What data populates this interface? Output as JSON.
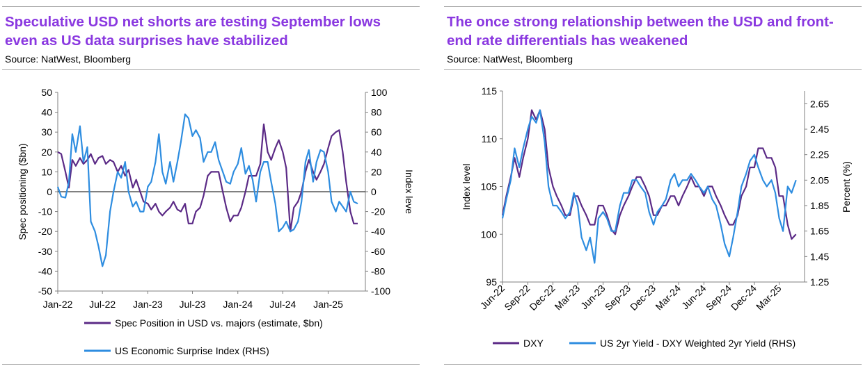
{
  "panels": [
    {
      "title": "Speculative USD net shorts are testing September lows even as US data surprises have stabilized",
      "source": "Source: NatWest, Bloomberg"
    },
    {
      "title": "The once strong relationship between the USD and front-end rate differentials has weakened",
      "source": "Source: NatWest, Bloomberg"
    }
  ],
  "colors": {
    "title": "#8a38e0",
    "purple_series": "#5b2a86",
    "blue_series": "#2e8de0",
    "rule": "#a6a6a6"
  },
  "chart_data": [
    {
      "type": "line",
      "title": "",
      "ylabel": "Spec positioning ($bn)",
      "y2label": "Index leve",
      "ylim": [
        -50,
        50
      ],
      "y2lim": [
        -100,
        100
      ],
      "yticks": [
        "50",
        "40",
        "30",
        "20",
        "10",
        "0",
        "-10",
        "-20",
        "-30",
        "-40",
        "-50"
      ],
      "y2ticks": [
        "100",
        "80",
        "60",
        "40",
        "20",
        "0",
        "-20",
        "-40",
        "-60",
        "-80",
        "-100"
      ],
      "xticks": [
        "Jan-22",
        "Jul-22",
        "Jan-23",
        "Jul-23",
        "Jan-24",
        "Jul-24",
        "Jan-25"
      ],
      "xtick_dates": [
        "2022-01-01",
        "2022-07-01",
        "2023-01-01",
        "2023-07-01",
        "2024-01-01",
        "2024-07-01",
        "2025-01-01"
      ],
      "xlim": [
        "2022-01-01",
        "2025-06-01"
      ],
      "grid": false,
      "legend_position": "bottom",
      "series": [
        {
          "name": "Spec Position in USD vs. majors (estimate, $bn)",
          "axis": "left",
          "color": "#5b2a86",
          "x": [
            "2022-01-01",
            "2022-01-15",
            "2022-02-01",
            "2022-02-15",
            "2022-03-01",
            "2022-03-15",
            "2022-04-01",
            "2022-04-15",
            "2022-05-01",
            "2022-05-15",
            "2022-06-01",
            "2022-06-15",
            "2022-07-01",
            "2022-07-15",
            "2022-08-01",
            "2022-08-15",
            "2022-09-01",
            "2022-09-15",
            "2022-10-01",
            "2022-10-15",
            "2022-11-01",
            "2022-11-15",
            "2022-12-01",
            "2022-12-15",
            "2023-01-01",
            "2023-01-15",
            "2023-02-01",
            "2023-02-15",
            "2023-03-01",
            "2023-03-15",
            "2023-04-01",
            "2023-04-15",
            "2023-05-01",
            "2023-05-15",
            "2023-06-01",
            "2023-06-15",
            "2023-07-01",
            "2023-07-15",
            "2023-08-01",
            "2023-08-15",
            "2023-09-01",
            "2023-09-15",
            "2023-10-01",
            "2023-10-15",
            "2023-11-01",
            "2023-11-15",
            "2023-12-01",
            "2023-12-15",
            "2024-01-01",
            "2024-01-15",
            "2024-02-01",
            "2024-02-15",
            "2024-03-01",
            "2024-03-15",
            "2024-04-01",
            "2024-04-15",
            "2024-05-01",
            "2024-05-15",
            "2024-06-01",
            "2024-06-15",
            "2024-07-01",
            "2024-07-15",
            "2024-08-01",
            "2024-08-15",
            "2024-09-01",
            "2024-09-15",
            "2024-10-01",
            "2024-10-15",
            "2024-11-01",
            "2024-11-15",
            "2024-12-01",
            "2024-12-15",
            "2025-01-01",
            "2025-01-15",
            "2025-02-01",
            "2025-02-15",
            "2025-03-01",
            "2025-03-15",
            "2025-04-01",
            "2025-04-15",
            "2025-05-01"
          ],
          "y": [
            20,
            19,
            10,
            2,
            16,
            13,
            17,
            14,
            16,
            19,
            14,
            17,
            18,
            14,
            16,
            15,
            10,
            13,
            8,
            11,
            2,
            6,
            0,
            -5,
            -6,
            -9,
            -6,
            -10,
            -12,
            -10,
            -8,
            -5,
            -9,
            -10,
            -6,
            -16,
            -16,
            -10,
            -8,
            -2,
            8,
            10,
            10,
            10,
            0,
            -8,
            -15,
            -12,
            -12,
            -8,
            0,
            8,
            8,
            8,
            14,
            34,
            20,
            16,
            22,
            26,
            20,
            12,
            -20,
            -8,
            -5,
            0,
            10,
            16,
            10,
            6,
            10,
            14,
            22,
            28,
            30,
            31,
            20,
            5,
            -10,
            -16,
            -16
          ]
        },
        {
          "name": "US Economic Surprise Index (RHS)",
          "axis": "right",
          "color": "#2e8de0",
          "x": [
            "2022-01-01",
            "2022-01-15",
            "2022-02-01",
            "2022-02-15",
            "2022-03-01",
            "2022-03-15",
            "2022-04-01",
            "2022-04-15",
            "2022-05-01",
            "2022-05-15",
            "2022-06-01",
            "2022-06-15",
            "2022-07-01",
            "2022-07-15",
            "2022-08-01",
            "2022-08-15",
            "2022-09-01",
            "2022-09-15",
            "2022-10-01",
            "2022-10-15",
            "2022-11-01",
            "2022-11-15",
            "2022-12-01",
            "2022-12-15",
            "2023-01-01",
            "2023-01-15",
            "2023-02-01",
            "2023-02-15",
            "2023-03-01",
            "2023-03-15",
            "2023-04-01",
            "2023-04-15",
            "2023-05-01",
            "2023-05-15",
            "2023-06-01",
            "2023-06-15",
            "2023-07-01",
            "2023-07-15",
            "2023-08-01",
            "2023-08-15",
            "2023-09-01",
            "2023-09-15",
            "2023-10-01",
            "2023-10-15",
            "2023-11-01",
            "2023-11-15",
            "2023-12-01",
            "2023-12-15",
            "2024-01-01",
            "2024-01-15",
            "2024-02-01",
            "2024-02-15",
            "2024-03-01",
            "2024-03-15",
            "2024-04-01",
            "2024-04-15",
            "2024-05-01",
            "2024-05-15",
            "2024-06-01",
            "2024-06-15",
            "2024-07-01",
            "2024-07-15",
            "2024-08-01",
            "2024-08-15",
            "2024-09-01",
            "2024-09-15",
            "2024-10-01",
            "2024-10-15",
            "2024-11-01",
            "2024-11-15",
            "2024-12-01",
            "2024-12-15",
            "2025-01-01",
            "2025-01-15",
            "2025-02-01",
            "2025-02-15",
            "2025-03-01",
            "2025-03-15",
            "2025-04-01",
            "2025-04-15",
            "2025-05-01"
          ],
          "y": [
            5,
            -5,
            -6,
            10,
            58,
            40,
            66,
            30,
            45,
            -30,
            -40,
            -55,
            -75,
            -64,
            -20,
            0,
            20,
            14,
            30,
            0,
            -15,
            -10,
            -20,
            -20,
            5,
            10,
            30,
            58,
            20,
            8,
            30,
            10,
            30,
            50,
            78,
            74,
            56,
            62,
            54,
            30,
            40,
            40,
            50,
            32,
            20,
            10,
            8,
            20,
            28,
            44,
            18,
            26,
            12,
            -10,
            20,
            30,
            30,
            10,
            -12,
            -40,
            -36,
            -30,
            -40,
            -38,
            -30,
            -10,
            30,
            42,
            10,
            30,
            42,
            40,
            20,
            -10,
            -20,
            -10,
            -15,
            -20,
            0,
            -10,
            -12
          ]
        }
      ]
    },
    {
      "type": "line",
      "title": "",
      "ylabel": "Index level",
      "y2label": "Percent (%)",
      "ylim": [
        95,
        115
      ],
      "y2lim": [
        1.25,
        2.75
      ],
      "yticks": [
        "115",
        "110",
        "105",
        "100",
        "95"
      ],
      "y2ticks": [
        "2.65",
        "2.45",
        "2.25",
        "2.05",
        "1.85",
        "1.65",
        "1.45",
        "1.25"
      ],
      "xticks": [
        "Jun-22",
        "Sep-22",
        "Dec-22",
        "Mar-23",
        "Jun-23",
        "Sep-23",
        "Dec-23",
        "Mar-24",
        "Jun-24",
        "Sep-24",
        "Dec-24",
        "Mar-25"
      ],
      "xtick_dates": [
        "2022-06-01",
        "2022-09-01",
        "2022-12-01",
        "2023-03-01",
        "2023-06-01",
        "2023-09-01",
        "2023-12-01",
        "2024-03-01",
        "2024-06-01",
        "2024-09-01",
        "2024-12-01",
        "2025-03-01"
      ],
      "xlim": [
        "2022-06-01",
        "2025-06-01"
      ],
      "grid": false,
      "legend_position": "bottom",
      "series": [
        {
          "name": "DXY",
          "axis": "left",
          "color": "#5b2a86",
          "x": [
            "2022-06-01",
            "2022-06-15",
            "2022-07-01",
            "2022-07-15",
            "2022-08-01",
            "2022-08-15",
            "2022-09-01",
            "2022-09-15",
            "2022-10-01",
            "2022-10-15",
            "2022-11-01",
            "2022-11-15",
            "2022-12-01",
            "2022-12-15",
            "2023-01-01",
            "2023-01-15",
            "2023-02-01",
            "2023-02-15",
            "2023-03-01",
            "2023-03-15",
            "2023-04-01",
            "2023-04-15",
            "2023-05-01",
            "2023-05-15",
            "2023-06-01",
            "2023-06-15",
            "2023-07-01",
            "2023-07-15",
            "2023-08-01",
            "2023-08-15",
            "2023-09-01",
            "2023-09-15",
            "2023-10-01",
            "2023-10-15",
            "2023-11-01",
            "2023-11-15",
            "2023-12-01",
            "2023-12-15",
            "2024-01-01",
            "2024-01-15",
            "2024-02-01",
            "2024-02-15",
            "2024-03-01",
            "2024-03-15",
            "2024-04-01",
            "2024-04-15",
            "2024-05-01",
            "2024-05-15",
            "2024-06-01",
            "2024-06-15",
            "2024-07-01",
            "2024-07-15",
            "2024-08-01",
            "2024-08-15",
            "2024-09-01",
            "2024-09-15",
            "2024-10-01",
            "2024-10-15",
            "2024-11-01",
            "2024-11-15",
            "2024-12-01",
            "2024-12-15",
            "2025-01-01",
            "2025-01-15",
            "2025-02-01",
            "2025-02-15",
            "2025-03-01",
            "2025-03-15",
            "2025-04-01",
            "2025-04-15",
            "2025-05-01"
          ],
          "y": [
            102,
            104,
            106,
            108,
            106,
            108,
            110,
            113,
            112,
            113,
            111,
            107,
            105,
            104,
            103,
            102,
            102,
            104,
            104,
            103,
            102,
            101,
            101,
            103,
            103,
            102,
            100.5,
            100,
            102,
            103,
            104,
            105,
            106,
            106,
            105,
            104,
            102,
            102,
            103,
            103,
            104,
            104,
            103,
            104,
            105,
            106,
            105,
            105,
            104,
            105,
            105,
            104,
            103,
            102,
            101,
            101,
            102,
            104,
            105,
            107,
            107,
            109,
            109,
            108,
            108,
            107,
            104,
            104,
            101,
            99.5,
            100
          ]
        },
        {
          "name": "US 2yr Yield - DXY Weighted 2yr Yield (RHS)",
          "axis": "right",
          "color": "#2e8de0",
          "x": [
            "2022-06-01",
            "2022-06-15",
            "2022-07-01",
            "2022-07-15",
            "2022-08-01",
            "2022-08-15",
            "2022-09-01",
            "2022-09-15",
            "2022-10-01",
            "2022-10-15",
            "2022-11-01",
            "2022-11-15",
            "2022-12-01",
            "2022-12-15",
            "2023-01-01",
            "2023-01-15",
            "2023-02-01",
            "2023-02-15",
            "2023-03-01",
            "2023-03-15",
            "2023-04-01",
            "2023-04-15",
            "2023-05-01",
            "2023-05-15",
            "2023-06-01",
            "2023-06-15",
            "2023-07-01",
            "2023-07-15",
            "2023-08-01",
            "2023-08-15",
            "2023-09-01",
            "2023-09-15",
            "2023-10-01",
            "2023-10-15",
            "2023-11-01",
            "2023-11-15",
            "2023-12-01",
            "2023-12-15",
            "2024-01-01",
            "2024-01-15",
            "2024-02-01",
            "2024-02-15",
            "2024-03-01",
            "2024-03-15",
            "2024-04-01",
            "2024-04-15",
            "2024-05-01",
            "2024-05-15",
            "2024-06-01",
            "2024-06-15",
            "2024-07-01",
            "2024-07-15",
            "2024-08-01",
            "2024-08-15",
            "2024-09-01",
            "2024-09-15",
            "2024-10-01",
            "2024-10-15",
            "2024-11-01",
            "2024-11-15",
            "2024-12-01",
            "2024-12-15",
            "2025-01-01",
            "2025-01-15",
            "2025-02-01",
            "2025-02-15",
            "2025-03-01",
            "2025-03-15",
            "2025-04-01",
            "2025-04-15",
            "2025-05-01"
          ],
          "y": [
            1.75,
            1.9,
            2.05,
            2.3,
            2.15,
            2.3,
            2.45,
            2.55,
            2.5,
            2.6,
            2.35,
            2.0,
            1.85,
            1.85,
            1.8,
            1.75,
            1.8,
            1.95,
            1.85,
            1.6,
            1.5,
            1.6,
            1.4,
            1.75,
            1.8,
            1.75,
            1.65,
            1.65,
            1.85,
            1.95,
            1.95,
            2.05,
            2.05,
            2.0,
            1.95,
            1.8,
            1.7,
            1.8,
            1.85,
            1.9,
            2.05,
            2.1,
            2.0,
            2.05,
            2.05,
            2.1,
            2.05,
            2.0,
            1.95,
            2.0,
            1.9,
            1.85,
            1.7,
            1.55,
            1.45,
            1.6,
            1.8,
            2.0,
            2.1,
            2.2,
            2.25,
            2.15,
            2.05,
            2.0,
            2.05,
            1.95,
            1.75,
            1.65,
            2.0,
            1.95,
            2.05
          ]
        }
      ]
    }
  ]
}
